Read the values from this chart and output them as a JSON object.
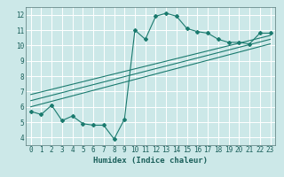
{
  "title": "",
  "xlabel": "Humidex (Indice chaleur)",
  "bg_color": "#cce8e8",
  "grid_color": "#ffffff",
  "line_color": "#1a7a6e",
  "xlim": [
    -0.5,
    23.5
  ],
  "ylim": [
    3.5,
    12.5
  ],
  "xticks": [
    0,
    1,
    2,
    3,
    4,
    5,
    6,
    7,
    8,
    9,
    10,
    11,
    12,
    13,
    14,
    15,
    16,
    17,
    18,
    19,
    20,
    21,
    22,
    23
  ],
  "yticks": [
    4,
    5,
    6,
    7,
    8,
    9,
    10,
    11,
    12
  ],
  "main_line_x": [
    0,
    1,
    2,
    3,
    4,
    5,
    6,
    7,
    8,
    9,
    10,
    11,
    12,
    13,
    14,
    15,
    16,
    17,
    18,
    19,
    20,
    21,
    22,
    23
  ],
  "main_line_y": [
    5.7,
    5.5,
    6.1,
    5.1,
    5.4,
    4.9,
    4.8,
    4.8,
    3.9,
    5.2,
    11.0,
    10.4,
    11.9,
    12.1,
    11.9,
    11.1,
    10.9,
    10.8,
    10.4,
    10.2,
    10.2,
    10.1,
    10.8,
    10.8
  ],
  "reg_line1_x": [
    0,
    23
  ],
  "reg_line1_y": [
    6.0,
    10.1
  ],
  "reg_line2_x": [
    0,
    23
  ],
  "reg_line2_y": [
    6.4,
    10.4
  ],
  "reg_line3_x": [
    0,
    23
  ],
  "reg_line3_y": [
    6.8,
    10.65
  ],
  "tick_fontsize": 5.5,
  "xlabel_fontsize": 6.5
}
